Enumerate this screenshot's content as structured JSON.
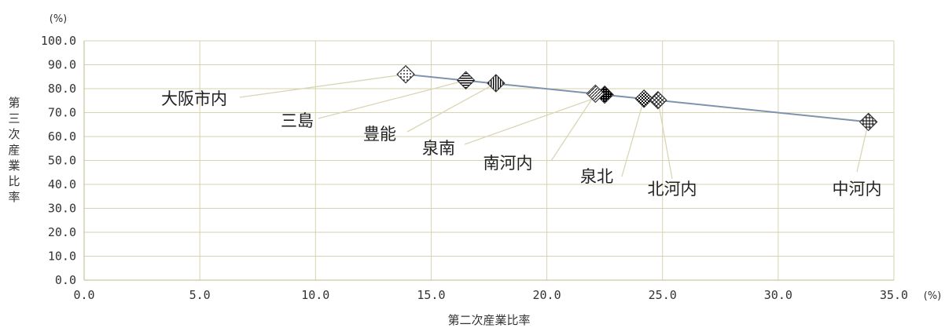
{
  "chart_data": {
    "type": "scatter",
    "title": "",
    "xlabel": "第二次産業比率",
    "ylabel": "第三次産業比率",
    "x_unit": "(%)",
    "y_unit": "(%)",
    "xlim": [
      0,
      35
    ],
    "ylim": [
      0,
      100
    ],
    "x_ticks": [
      "0.0",
      "5.0",
      "10.0",
      "15.0",
      "20.0",
      "25.0",
      "30.0",
      "35.0"
    ],
    "y_ticks": [
      "0.0",
      "10.0",
      "20.0",
      "30.0",
      "40.0",
      "50.0",
      "60.0",
      "70.0",
      "80.0",
      "90.0",
      "100.0"
    ],
    "grid": true,
    "trendline": true,
    "points": [
      {
        "label": "大阪市内",
        "x": 13.9,
        "y": 86.0
      },
      {
        "label": "三島",
        "x": 16.5,
        "y": 83.5
      },
      {
        "label": "豊能",
        "x": 17.8,
        "y": 82.3
      },
      {
        "label": "泉南",
        "x": 22.5,
        "y": 77.5
      },
      {
        "label": "南河内",
        "x": 22.1,
        "y": 77.9
      },
      {
        "label": "泉北",
        "x": 24.2,
        "y": 75.8
      },
      {
        "label": "北河内",
        "x": 24.8,
        "y": 75.2
      },
      {
        "label": "中河内",
        "x": 33.9,
        "y": 66.1
      }
    ]
  }
}
